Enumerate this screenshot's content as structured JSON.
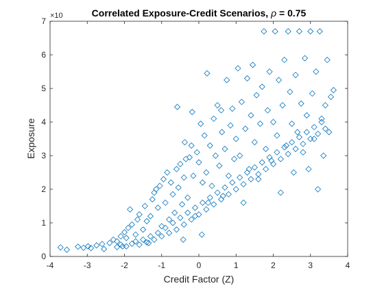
{
  "chart_data": {
    "type": "scatter",
    "title": "Correlated Exposure-Credit Scenarios,",
    "title_param_symbol": "ρ",
    "title_param_value": "= 0.75",
    "xlabel": "Credit Factor (Z)",
    "ylabel": "Exposure",
    "y_multiplier": "×10",
    "xlim": [
      -4,
      4
    ],
    "ylim": [
      0,
      7
    ],
    "xticks": [
      "-4",
      "-3",
      "-2",
      "-1",
      "0",
      "1",
      "2",
      "3",
      "4"
    ],
    "yticks": [
      "0",
      "1",
      "2",
      "3",
      "4",
      "5",
      "6",
      "7"
    ],
    "marker": "diamond-open",
    "marker_color": "#0072bd",
    "grid": false,
    "series": [
      {
        "points": [
          [
            -3.72,
            0.27
          ],
          [
            -3.55,
            0.2
          ],
          [
            -3.25,
            0.29
          ],
          [
            -3.1,
            0.26
          ],
          [
            -2.98,
            0.3
          ],
          [
            -2.9,
            0.25
          ],
          [
            -2.75,
            0.33
          ],
          [
            -2.6,
            0.37
          ],
          [
            -2.55,
            0.22
          ],
          [
            -2.4,
            0.4
          ],
          [
            -2.3,
            0.5
          ],
          [
            -2.2,
            0.45
          ],
          [
            -2.1,
            0.6
          ],
          [
            -2.05,
            0.3
          ],
          [
            -2.0,
            0.72
          ],
          [
            -1.95,
            0.55
          ],
          [
            -1.9,
            0.85
          ],
          [
            -1.85,
            1.4
          ],
          [
            -1.8,
            0.95
          ],
          [
            -1.7,
            0.65
          ],
          [
            -1.65,
            1.1
          ],
          [
            -1.6,
            1.25
          ],
          [
            -1.5,
            0.8
          ],
          [
            -1.45,
            1.5
          ],
          [
            -1.4,
            1.05
          ],
          [
            -1.35,
            0.4
          ],
          [
            -1.3,
            1.2
          ],
          [
            -1.25,
            1.7
          ],
          [
            -1.2,
            1.9
          ],
          [
            -1.15,
            2.0
          ],
          [
            -1.1,
            1.45
          ],
          [
            -1.05,
            2.1
          ],
          [
            -1.0,
            0.9
          ],
          [
            -0.95,
            2.3
          ],
          [
            -0.9,
            1.6
          ],
          [
            -0.85,
            2.5
          ],
          [
            -0.8,
            1.1
          ],
          [
            -0.75,
            2.2
          ],
          [
            -0.7,
            1.85
          ],
          [
            -0.65,
            1.3
          ],
          [
            -0.6,
            2.6
          ],
          [
            -0.58,
            4.45
          ],
          [
            -0.55,
            2.05
          ],
          [
            -0.5,
            2.75
          ],
          [
            -0.45,
            1.55
          ],
          [
            -0.42,
            0.5
          ],
          [
            -0.4,
            2.35
          ],
          [
            -0.38,
            3.4
          ],
          [
            -0.35,
            2.9
          ],
          [
            -0.3,
            1.75
          ],
          [
            -0.25,
            2.95
          ],
          [
            -0.2,
            3.3
          ],
          [
            -0.18,
            4.3
          ],
          [
            -0.15,
            2.4
          ],
          [
            -0.1,
            1.2
          ],
          [
            -0.05,
            3.1
          ],
          [
            0.0,
            2.8
          ],
          [
            0.05,
            3.95
          ],
          [
            0.08,
            0.65
          ],
          [
            0.1,
            2.2
          ],
          [
            0.15,
            3.6
          ],
          [
            0.2,
            2.5
          ],
          [
            0.22,
            5.45
          ],
          [
            0.25,
            1.6
          ],
          [
            0.3,
            3.3
          ],
          [
            0.35,
            2.1
          ],
          [
            0.4,
            4.1
          ],
          [
            0.45,
            3.0
          ],
          [
            0.5,
            4.5
          ],
          [
            0.55,
            2.7
          ],
          [
            0.6,
            4.35
          ],
          [
            0.62,
            3.7
          ],
          [
            0.65,
            1.8
          ],
          [
            0.7,
            3.2
          ],
          [
            0.75,
            5.25
          ],
          [
            0.8,
            2.4
          ],
          [
            0.85,
            3.9
          ],
          [
            0.9,
            4.4
          ],
          [
            0.95,
            2.9
          ],
          [
            1.0,
            3.5
          ],
          [
            1.05,
            5.6
          ],
          [
            1.1,
            3.0
          ],
          [
            1.15,
            4.6
          ],
          [
            1.2,
            1.6
          ],
          [
            1.25,
            3.8
          ],
          [
            1.3,
            5.3
          ],
          [
            1.35,
            2.6
          ],
          [
            1.4,
            4.2
          ],
          [
            1.45,
            5.7
          ],
          [
            1.5,
            3.4
          ],
          [
            1.55,
            4.8
          ],
          [
            1.6,
            2.3
          ],
          [
            1.65,
            3.95
          ],
          [
            1.7,
            5.05
          ],
          [
            1.75,
            6.7
          ],
          [
            1.8,
            3.2
          ],
          [
            1.85,
            4.35
          ],
          [
            1.9,
            5.5
          ],
          [
            1.95,
            2.85
          ],
          [
            2.0,
            4.0
          ],
          [
            2.05,
            6.7
          ],
          [
            2.1,
            3.6
          ],
          [
            2.15,
            5.25
          ],
          [
            2.2,
            1.9
          ],
          [
            2.25,
            4.5
          ],
          [
            2.3,
            5.85
          ],
          [
            2.35,
            3.3
          ],
          [
            2.4,
            6.7
          ],
          [
            2.45,
            4.9
          ],
          [
            2.5,
            3.95
          ],
          [
            2.55,
            2.5
          ],
          [
            2.6,
            5.4
          ],
          [
            2.65,
            3.7
          ],
          [
            2.7,
            6.7
          ],
          [
            2.75,
            4.55
          ],
          [
            2.8,
            3.1
          ],
          [
            2.85,
            5.9
          ],
          [
            2.9,
            4.2
          ],
          [
            2.95,
            2.6
          ],
          [
            3.0,
            6.7
          ],
          [
            3.05,
            4.85
          ],
          [
            3.1,
            3.5
          ],
          [
            3.15,
            5.5
          ],
          [
            3.2,
            2.0
          ],
          [
            3.25,
            6.7
          ],
          [
            3.3,
            4.1
          ],
          [
            3.35,
            3.0
          ],
          [
            3.4,
            4.5
          ],
          [
            3.45,
            5.85
          ],
          [
            3.5,
            3.7
          ],
          [
            3.55,
            4.75
          ],
          [
            3.62,
            4.95
          ],
          [
            -2.2,
            0.28
          ],
          [
            -2.1,
            0.35
          ],
          [
            -1.95,
            0.3
          ],
          [
            -1.8,
            0.38
          ],
          [
            -1.7,
            0.45
          ],
          [
            -1.6,
            0.35
          ],
          [
            -1.5,
            0.5
          ],
          [
            -1.4,
            0.42
          ],
          [
            -1.3,
            0.6
          ],
          [
            -1.2,
            0.5
          ],
          [
            -1.1,
            0.7
          ],
          [
            -1.0,
            0.6
          ],
          [
            -0.9,
            0.85
          ],
          [
            -0.8,
            0.7
          ],
          [
            -0.7,
            1.0
          ],
          [
            -0.6,
            0.8
          ],
          [
            -0.5,
            1.15
          ],
          [
            -0.4,
            0.95
          ],
          [
            -0.3,
            1.3
          ],
          [
            -0.2,
            1.1
          ],
          [
            -0.1,
            1.45
          ],
          [
            0.0,
            1.25
          ],
          [
            0.1,
            1.6
          ],
          [
            0.2,
            1.4
          ],
          [
            0.3,
            1.75
          ],
          [
            0.4,
            1.55
          ],
          [
            0.5,
            1.9
          ],
          [
            0.6,
            1.7
          ],
          [
            0.7,
            2.05
          ],
          [
            0.8,
            1.85
          ],
          [
            0.9,
            2.2
          ],
          [
            1.0,
            2.0
          ],
          [
            1.1,
            2.35
          ],
          [
            1.2,
            2.15
          ],
          [
            1.3,
            2.5
          ],
          [
            1.4,
            2.3
          ],
          [
            1.5,
            2.65
          ],
          [
            1.6,
            2.45
          ],
          [
            1.7,
            2.8
          ],
          [
            1.8,
            2.6
          ],
          [
            1.9,
            2.95
          ],
          [
            2.0,
            2.75
          ],
          [
            2.1,
            3.1
          ],
          [
            2.2,
            2.9
          ],
          [
            2.3,
            3.25
          ],
          [
            2.4,
            3.05
          ],
          [
            2.5,
            3.4
          ],
          [
            2.6,
            3.2
          ],
          [
            2.7,
            3.55
          ],
          [
            2.8,
            3.35
          ],
          [
            2.9,
            3.7
          ],
          [
            3.0,
            3.5
          ],
          [
            3.1,
            3.85
          ],
          [
            3.2,
            3.65
          ],
          [
            3.3,
            4.0
          ],
          [
            3.4,
            3.8
          ]
        ]
      }
    ]
  }
}
